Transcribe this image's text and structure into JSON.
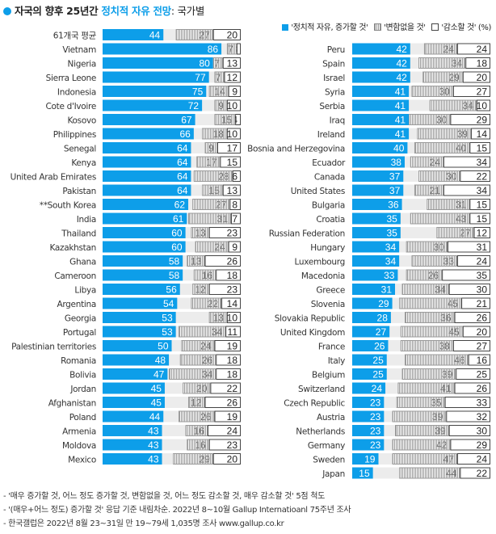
{
  "title": {
    "prefix": "자국의 향후 25년간 ",
    "highlight": "정치적 자유 전망",
    "suffix": ": 국가별"
  },
  "legend": {
    "increase": "'정치적 자유, 증가할 것'",
    "same": "'변함없을 것'",
    "decrease": "'감소할 것'",
    "unit": "(%)"
  },
  "colors": {
    "increase": "#0d9ee9",
    "gap": "#ececec",
    "hatch": "#9a9a9a",
    "decrease_border": "#444444"
  },
  "notes": [
    "- '매우 증가할 것, 어느 정도 증가할 것, 변함없을 것, 어느 정도 감소할 것, 매우 감소할 것' 5점 척도",
    "- '(매우+어느 정도) 증가할 것' 응답 기준 내림차순. 2022년 8~10월 Gallup Internatioanl 75주년 조사",
    "- 한국갤럽은 2022년 8월 23~31일 만 19~79세 1,035명 조사 www.gallup.co.kr"
  ],
  "chart_data": {
    "type": "bar",
    "stacked": true,
    "orientation": "horizontal",
    "title": "자국의 향후 25년간 정치적 자유 전망: 국가별",
    "unit": "%",
    "xlim": [
      0,
      100
    ],
    "series_names": [
      "'정치적 자유, 증가할 것'",
      "'변함없을 것'",
      "'감소할 것'"
    ],
    "legend_position": "top-right",
    "columns": [
      {
        "rows": [
          {
            "label": "61개국 평균",
            "increase": 44,
            "same": 27,
            "decrease": 20
          },
          {
            "label": "Vietnam",
            "increase": 86,
            "same": 7,
            "decrease": 3
          },
          {
            "label": "Nigeria",
            "increase": 80,
            "same": 7,
            "decrease": 13
          },
          {
            "label": "Sierra Leone",
            "increase": 77,
            "same": 7,
            "decrease": 12
          },
          {
            "label": "Indonesia",
            "increase": 75,
            "same": 14,
            "decrease": 9
          },
          {
            "label": "Cote d'Ivoire",
            "increase": 72,
            "same": 9,
            "decrease": 10
          },
          {
            "label": "Kosovo",
            "increase": 67,
            "same": 15,
            "decrease": 4
          },
          {
            "label": "Philippines",
            "increase": 66,
            "same": 18,
            "decrease": 10
          },
          {
            "label": "Senegal",
            "increase": 64,
            "same": 9,
            "decrease": 17
          },
          {
            "label": "Kenya",
            "increase": 64,
            "same": 17,
            "decrease": 15
          },
          {
            "label": "United Arab Emirates",
            "increase": 64,
            "same": 28,
            "decrease": 6
          },
          {
            "label": "Pakistan",
            "increase": 64,
            "same": 15,
            "decrease": 13
          },
          {
            "label": "**South Korea",
            "increase": 62,
            "same": 27,
            "decrease": 8
          },
          {
            "label": "India",
            "increase": 61,
            "same": 31,
            "decrease": 7
          },
          {
            "label": "Thailand",
            "increase": 60,
            "same": 13,
            "decrease": 23
          },
          {
            "label": "Kazakhstan",
            "increase": 60,
            "same": 24,
            "decrease": 9
          },
          {
            "label": "Ghana",
            "increase": 58,
            "same": 13,
            "decrease": 26
          },
          {
            "label": "Cameroon",
            "increase": 58,
            "same": 16,
            "decrease": 18
          },
          {
            "label": "Libya",
            "increase": 56,
            "same": 12,
            "decrease": 23
          },
          {
            "label": "Argentina",
            "increase": 54,
            "same": 22,
            "decrease": 14
          },
          {
            "label": "Georgia",
            "increase": 53,
            "same": 13,
            "decrease": 10
          },
          {
            "label": "Portugal",
            "increase": 53,
            "same": 34,
            "decrease": 11
          },
          {
            "label": "Palestinian territories",
            "increase": 50,
            "same": 24,
            "decrease": 19
          },
          {
            "label": "Romania",
            "increase": 48,
            "same": 26,
            "decrease": 18
          },
          {
            "label": "Bolivia",
            "increase": 47,
            "same": 34,
            "decrease": 18
          },
          {
            "label": "Jordan",
            "increase": 45,
            "same": 20,
            "decrease": 22
          },
          {
            "label": "Afghanistan",
            "increase": 45,
            "same": 12,
            "decrease": 26
          },
          {
            "label": "Poland",
            "increase": 44,
            "same": 26,
            "decrease": 19
          },
          {
            "label": "Armenia",
            "increase": 43,
            "same": 16,
            "decrease": 24
          },
          {
            "label": "Moldova",
            "increase": 43,
            "same": 16,
            "decrease": 23
          },
          {
            "label": "Mexico",
            "increase": 43,
            "same": 29,
            "decrease": 20
          }
        ]
      },
      {
        "rows": [
          {
            "label": "Peru",
            "increase": 42,
            "same": 24,
            "decrease": 24
          },
          {
            "label": "Spain",
            "increase": 42,
            "same": 34,
            "decrease": 18
          },
          {
            "label": "Israel",
            "increase": 42,
            "same": 29,
            "decrease": 20
          },
          {
            "label": "Syria",
            "increase": 41,
            "same": 30,
            "decrease": 27
          },
          {
            "label": "Serbia",
            "increase": 41,
            "same": 34,
            "decrease": 10
          },
          {
            "label": "Iraq",
            "increase": 41,
            "same": 30,
            "decrease": 29
          },
          {
            "label": "Ireland",
            "increase": 41,
            "same": 39,
            "decrease": 14
          },
          {
            "label": "Bosnia and Herzegovina",
            "increase": 40,
            "same": 40,
            "decrease": 15
          },
          {
            "label": "Ecuador",
            "increase": 38,
            "same": 24,
            "decrease": 34
          },
          {
            "label": "Canada",
            "increase": 37,
            "same": 30,
            "decrease": 22
          },
          {
            "label": "United States",
            "increase": 37,
            "same": 21,
            "decrease": 34
          },
          {
            "label": "Bulgaria",
            "increase": 36,
            "same": 31,
            "decrease": 15
          },
          {
            "label": "Croatia",
            "increase": 35,
            "same": 43,
            "decrease": 15
          },
          {
            "label": "Russian Federation",
            "increase": 35,
            "same": 27,
            "decrease": 12
          },
          {
            "label": "Hungary",
            "increase": 34,
            "same": 30,
            "decrease": 31
          },
          {
            "label": "Luxembourg",
            "increase": 34,
            "same": 33,
            "decrease": 24
          },
          {
            "label": "Macedonia",
            "increase": 33,
            "same": 26,
            "decrease": 35
          },
          {
            "label": "Greece",
            "increase": 31,
            "same": 34,
            "decrease": 30
          },
          {
            "label": "Slovenia",
            "increase": 29,
            "same": 45,
            "decrease": 21
          },
          {
            "label": "Slovakia Republic",
            "increase": 28,
            "same": 36,
            "decrease": 26
          },
          {
            "label": "United Kingdom",
            "increase": 27,
            "same": 45,
            "decrease": 20
          },
          {
            "label": "France",
            "increase": 26,
            "same": 38,
            "decrease": 27
          },
          {
            "label": "Italy",
            "increase": 25,
            "same": 46,
            "decrease": 16
          },
          {
            "label": "Belgium",
            "increase": 25,
            "same": 39,
            "decrease": 25
          },
          {
            "label": "Switzerland",
            "increase": 24,
            "same": 41,
            "decrease": 26
          },
          {
            "label": "Czech Republic",
            "increase": 23,
            "same": 35,
            "decrease": 33
          },
          {
            "label": "Austria",
            "increase": 23,
            "same": 39,
            "decrease": 32
          },
          {
            "label": "Netherlands",
            "increase": 23,
            "same": 39,
            "decrease": 30
          },
          {
            "label": "Germany",
            "increase": 23,
            "same": 42,
            "decrease": 29
          },
          {
            "label": "Sweden",
            "increase": 19,
            "same": 47,
            "decrease": 24
          },
          {
            "label": "Japan",
            "increase": 15,
            "same": 44,
            "decrease": 22
          }
        ]
      }
    ]
  }
}
